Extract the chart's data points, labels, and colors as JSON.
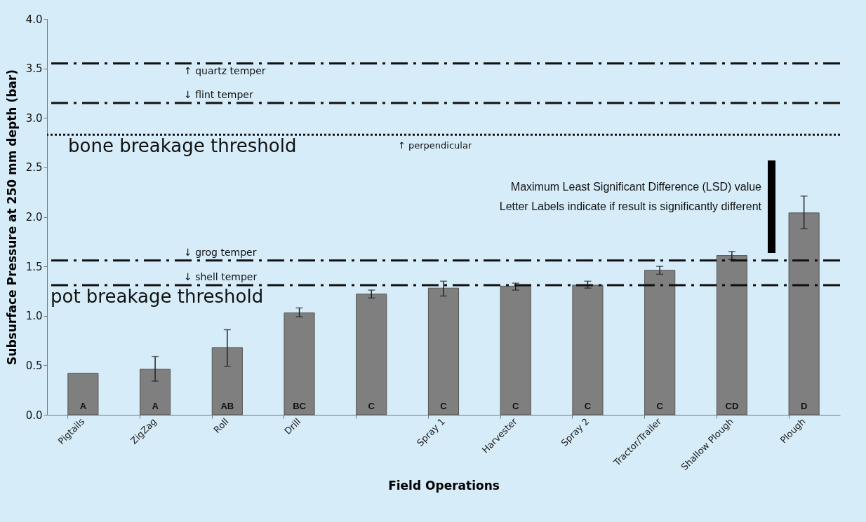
{
  "chart_data": {
    "type": "bar",
    "xlabel": "Field Operations",
    "ylabel": "Subsurface Pressure at 250 mm depth (bar)",
    "categories": [
      "Pigtails",
      "ZigZag",
      "Roll",
      "Drill",
      null,
      "Spray 1",
      "Harvester",
      "Spray 2",
      "Tractor/Trailer",
      "Shallow Plough",
      "Plough"
    ],
    "values": [
      0.42,
      0.46,
      0.68,
      1.03,
      1.22,
      1.28,
      1.3,
      1.31,
      1.46,
      1.61,
      2.04
    ],
    "errors": [
      null,
      [
        0.34,
        0.59
      ],
      [
        0.49,
        0.86
      ],
      [
        0.99,
        1.08
      ],
      [
        1.18,
        1.26
      ],
      [
        1.2,
        1.35
      ],
      [
        1.26,
        1.33
      ],
      [
        1.28,
        1.35
      ],
      [
        1.42,
        1.5
      ],
      [
        1.57,
        1.65
      ],
      [
        1.88,
        2.21
      ]
    ],
    "value_labels": [
      "A",
      "A",
      "AB",
      "BC",
      "C",
      "C",
      "C",
      "C",
      "C",
      "CD",
      "D"
    ],
    "color": "#7f7f7f",
    "ylim": [
      0,
      4
    ],
    "yticks": [
      {
        "value": 0,
        "label": "0.0"
      },
      {
        "value": 0.5,
        "label": "0.5"
      },
      {
        "value": 1,
        "label": "1.0"
      },
      {
        "value": 1.5,
        "label": "1.5"
      },
      {
        "value": 2,
        "label": "2.0"
      },
      {
        "value": 2.5,
        "label": "2.5"
      },
      {
        "value": 3,
        "label": "3.0"
      },
      {
        "value": 3.5,
        "label": "3.5"
      },
      {
        "value": 4,
        "label": "4.0"
      }
    ],
    "ref_lines": [
      {
        "axis": "y",
        "value": 3.55,
        "label": "↑ quartz temper",
        "color": "#111111",
        "line_style": "dashed"
      },
      {
        "axis": "y",
        "value": 3.15,
        "label": "↓ flint temper",
        "color": "#111111",
        "line_style": "dashed"
      },
      {
        "axis": "y",
        "value": 2.83,
        "label": "bone breakage threshold",
        "color": "#111111",
        "line_style": "dotted"
      },
      {
        "axis": "y",
        "value": 1.56,
        "label": "↓ grog temper",
        "color": "#111111",
        "line_style": "dashed"
      },
      {
        "axis": "y",
        "value": 1.31,
        "label": "↓ shell temper",
        "color": "#111111",
        "line_style": "dashed"
      }
    ],
    "annotations": [
      "↑ perpendicular",
      "pot breakage threshold",
      "Maximum Least Significant Difference (LSD) value",
      "Letter Labels indicate if result is significantly different"
    ],
    "grid": false
  }
}
